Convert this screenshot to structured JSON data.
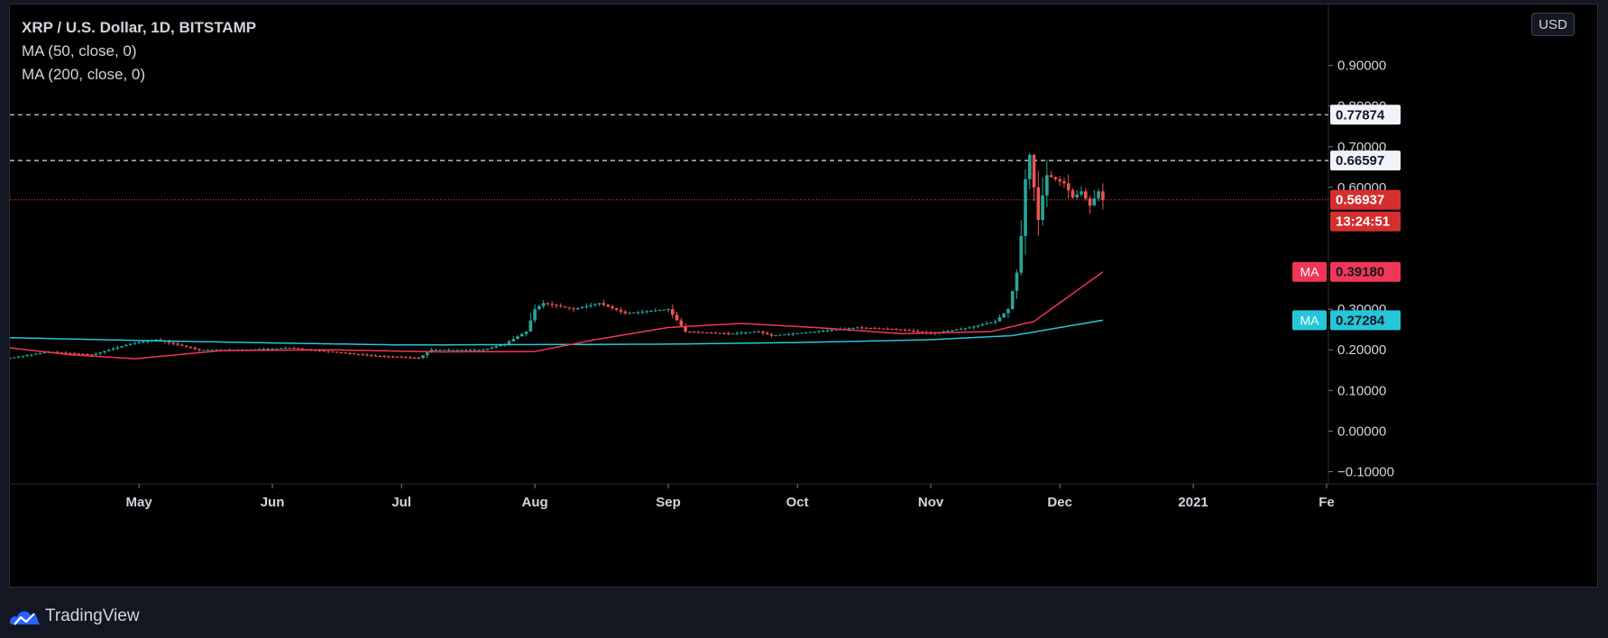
{
  "header": {
    "title": "XRP / U.S. Dollar, 1D, BITSTAMP",
    "ma50_label": "MA (50, close, 0)",
    "ma200_label": "MA (200, close, 0)",
    "currency_button": "USD"
  },
  "footer": {
    "brand": "TradingView",
    "logo_icon": "tradingview-cloud-icon"
  },
  "colors": {
    "background": "#000000",
    "up": "#26a69a",
    "down": "#ef5350",
    "ma50": "#f23658",
    "ma200": "#26c6da",
    "axis_text": "#d1d4dc"
  },
  "chart_data": {
    "type": "candlestick",
    "title": "XRP / U.S. Dollar, 1D, BITSTAMP",
    "x_range": [
      "2020-04-01",
      "2021-02-01"
    ],
    "ylim": [
      -0.13,
      1.05
    ],
    "y_ticks": [
      "0.90000",
      "0.80000",
      "0.70000",
      "0.60000",
      "0.30000",
      "0.20000",
      "0.10000",
      "0.00000",
      "−0.10000"
    ],
    "x_ticks": [
      {
        "label": "May",
        "date": "2020-05-01"
      },
      {
        "label": "Jun",
        "date": "2020-06-01"
      },
      {
        "label": "Jul",
        "date": "2020-07-01"
      },
      {
        "label": "Aug",
        "date": "2020-08-01"
      },
      {
        "label": "Sep",
        "date": "2020-09-01"
      },
      {
        "label": "Oct",
        "date": "2020-10-01"
      },
      {
        "label": "Nov",
        "date": "2020-11-01"
      },
      {
        "label": "Dec",
        "date": "2020-12-01"
      },
      {
        "label": "2021",
        "date": "2021-01-01"
      },
      {
        "label": "Fe",
        "date": "2021-02-01"
      }
    ],
    "close_anchors": [
      [
        "2020-04-01",
        0.18
      ],
      [
        "2020-04-10",
        0.195
      ],
      [
        "2020-04-20",
        0.188
      ],
      [
        "2020-04-29",
        0.215
      ],
      [
        "2020-05-05",
        0.225
      ],
      [
        "2020-05-15",
        0.2
      ],
      [
        "2020-05-25",
        0.2
      ],
      [
        "2020-06-05",
        0.205
      ],
      [
        "2020-06-15",
        0.195
      ],
      [
        "2020-06-25",
        0.185
      ],
      [
        "2020-07-05",
        0.18
      ],
      [
        "2020-07-08",
        0.2
      ],
      [
        "2020-07-20",
        0.2
      ],
      [
        "2020-07-25",
        0.215
      ],
      [
        "2020-07-30",
        0.245
      ],
      [
        "2020-08-01",
        0.3
      ],
      [
        "2020-08-03",
        0.315
      ],
      [
        "2020-08-10",
        0.3
      ],
      [
        "2020-08-16",
        0.315
      ],
      [
        "2020-08-22",
        0.29
      ],
      [
        "2020-09-01",
        0.3
      ],
      [
        "2020-09-05",
        0.245
      ],
      [
        "2020-09-15",
        0.24
      ],
      [
        "2020-09-22",
        0.245
      ],
      [
        "2020-09-25",
        0.235
      ],
      [
        "2020-10-05",
        0.245
      ],
      [
        "2020-10-15",
        0.255
      ],
      [
        "2020-10-25",
        0.25
      ],
      [
        "2020-11-01",
        0.24
      ],
      [
        "2020-11-10",
        0.255
      ],
      [
        "2020-11-16",
        0.27
      ],
      [
        "2020-11-19",
        0.3
      ],
      [
        "2020-11-21",
        0.39
      ],
      [
        "2020-11-22",
        0.48
      ],
      [
        "2020-11-23",
        0.62
      ],
      [
        "2020-11-24",
        0.68
      ],
      [
        "2020-11-25",
        0.6
      ],
      [
        "2020-11-26",
        0.52
      ],
      [
        "2020-11-27",
        0.58
      ],
      [
        "2020-11-28",
        0.63
      ],
      [
        "2020-11-30",
        0.62
      ],
      [
        "2020-12-02",
        0.61
      ],
      [
        "2020-12-04",
        0.575
      ],
      [
        "2020-12-06",
        0.59
      ],
      [
        "2020-12-08",
        0.555
      ],
      [
        "2020-12-10",
        0.59
      ],
      [
        "2020-12-11",
        0.569
      ]
    ],
    "ma50_anchors": [
      [
        "2020-04-01",
        0.205
      ],
      [
        "2020-04-15",
        0.188
      ],
      [
        "2020-04-30",
        0.178
      ],
      [
        "2020-05-20",
        0.198
      ],
      [
        "2020-06-15",
        0.2
      ],
      [
        "2020-07-10",
        0.195
      ],
      [
        "2020-08-01",
        0.196
      ],
      [
        "2020-08-15",
        0.225
      ],
      [
        "2020-09-01",
        0.255
      ],
      [
        "2020-09-18",
        0.265
      ],
      [
        "2020-10-05",
        0.255
      ],
      [
        "2020-10-25",
        0.24
      ],
      [
        "2020-11-15",
        0.245
      ],
      [
        "2020-11-25",
        0.27
      ],
      [
        "2020-12-11",
        0.392
      ]
    ],
    "ma200_anchors": [
      [
        "2020-04-01",
        0.23
      ],
      [
        "2020-05-01",
        0.223
      ],
      [
        "2020-06-01",
        0.217
      ],
      [
        "2020-07-01",
        0.212
      ],
      [
        "2020-08-01",
        0.213
      ],
      [
        "2020-09-01",
        0.214
      ],
      [
        "2020-10-01",
        0.218
      ],
      [
        "2020-11-01",
        0.225
      ],
      [
        "2020-11-20",
        0.235
      ],
      [
        "2020-12-11",
        0.273
      ]
    ],
    "horizontal_lines": [
      {
        "value": 0.77874,
        "label": "0.77874",
        "style": "dashed"
      },
      {
        "value": 0.66597,
        "label": "0.66597",
        "style": "dashed"
      }
    ],
    "last_price": {
      "value": 0.56937,
      "label": "0.56937",
      "countdown": "13:24:51"
    },
    "ma50_last": {
      "tag": "MA",
      "label": "0.39180",
      "value": 0.3918
    },
    "ma200_last": {
      "tag": "MA",
      "label": "0.27284",
      "value": 0.27284
    }
  }
}
